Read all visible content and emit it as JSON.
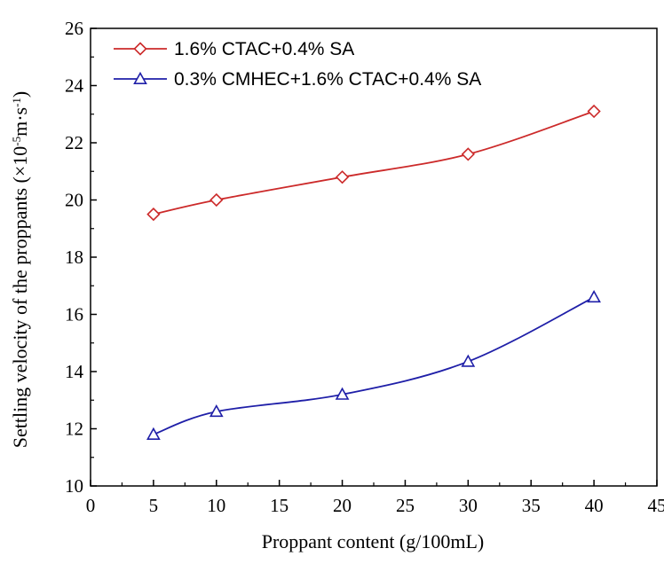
{
  "chart_data": {
    "type": "line",
    "title": "",
    "xlabel": "Proppant content (g/100mL)",
    "ylabel_parts": {
      "main": "Settling velocity of the proppants (×10",
      "exp1": "-5",
      "mid": "m·s",
      "exp2": "-1",
      "end": ")"
    },
    "xlim": [
      0,
      45
    ],
    "ylim": [
      10,
      26
    ],
    "xticks": [
      0,
      5,
      10,
      15,
      20,
      25,
      30,
      35,
      40,
      45
    ],
    "yticks": [
      10,
      12,
      14,
      16,
      18,
      20,
      22,
      24,
      26
    ],
    "grid": false,
    "legend_position": "top-left",
    "series": [
      {
        "name": "1.6% CTAC+0.4% SA",
        "marker": "diamond",
        "color": "#cc2a2a",
        "x": [
          5,
          10,
          20,
          30,
          40
        ],
        "y": [
          19.5,
          20.0,
          20.8,
          21.6,
          23.1
        ]
      },
      {
        "name": "0.3% CMHEC+1.6% CTAC+0.4% SA",
        "marker": "triangle",
        "color": "#1f1fa8",
        "x": [
          5,
          10,
          20,
          30,
          40
        ],
        "y": [
          11.8,
          12.6,
          13.2,
          14.35,
          16.6
        ]
      }
    ]
  }
}
